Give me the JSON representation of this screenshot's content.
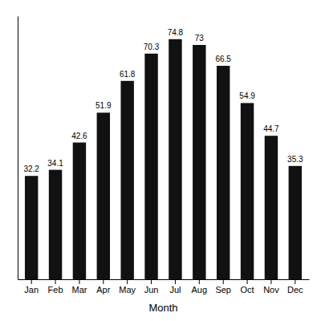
{
  "chart_data": {
    "type": "bar",
    "categories": [
      "Jan",
      "Feb",
      "Mar",
      "Apr",
      "May",
      "Jun",
      "Jul",
      "Aug",
      "Sep",
      "Oct",
      "Nov",
      "Dec"
    ],
    "values": [
      32.2,
      34.1,
      42.6,
      51.9,
      61.8,
      70.3,
      74.8,
      73.0,
      66.5,
      54.9,
      44.7,
      35.3
    ],
    "color": "#111111",
    "xlabel": "Month",
    "ylim": [
      0,
      82
    ],
    "grid": false,
    "data_labels": true,
    "tick_labels": "x"
  }
}
